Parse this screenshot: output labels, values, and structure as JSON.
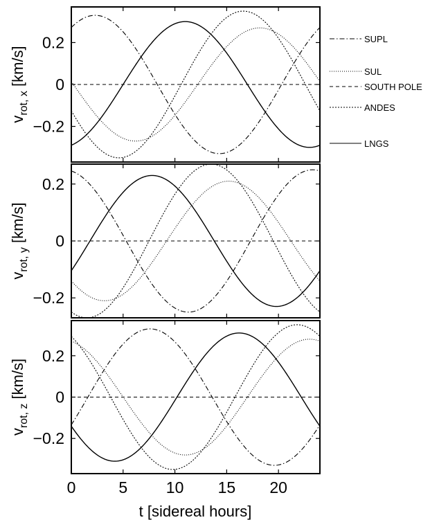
{
  "chart_data": {
    "type": "line",
    "xlabel": "t [sidereal hours]",
    "xlim": [
      0,
      24
    ],
    "xticks": [
      0,
      5,
      10,
      15,
      20
    ],
    "legend_position": "right",
    "grid": false,
    "panels": [
      {
        "ylabel_main": "v",
        "ylabel_sub": "rot, x",
        "ylabel_unit": " [km/s]",
        "ylim": [
          -0.37,
          0.37
        ],
        "yticks": [
          0.2,
          0,
          -0.2
        ],
        "ytick_labels": [
          "0.2",
          "0",
          "−0.2"
        ],
        "series": [
          {
            "name": "SUPL",
            "style": "dashdot",
            "amplitude": 0.33,
            "peak_hour": 2.3
          },
          {
            "name": "SUL",
            "style": "dotted",
            "amplitude": 0.27,
            "peak_hour": 18.2
          },
          {
            "name": "SOUTH POLE",
            "style": "dashed",
            "amplitude": 0.0,
            "peak_hour": 0
          },
          {
            "name": "ANDES",
            "style": "densedot",
            "amplitude": 0.35,
            "peak_hour": 16.6
          },
          {
            "name": "LNGS",
            "style": "solid",
            "amplitude": 0.3,
            "peak_hour": 11.0
          }
        ]
      },
      {
        "ylabel_main": "v",
        "ylabel_sub": "rot, y",
        "ylabel_unit": " [km/s]",
        "ylim": [
          -0.27,
          0.27
        ],
        "yticks": [
          0.2,
          0,
          -0.2
        ],
        "ytick_labels": [
          "0.2",
          "0",
          "−0.2"
        ],
        "series": [
          {
            "name": "SUPL",
            "style": "dashdot",
            "amplitude": 0.25,
            "peak_hour": 23.3
          },
          {
            "name": "SUL",
            "style": "dotted",
            "amplitude": 0.21,
            "peak_hour": 15.2
          },
          {
            "name": "SOUTH POLE",
            "style": "dashed",
            "amplitude": 0.0,
            "peak_hour": 0
          },
          {
            "name": "ANDES",
            "style": "densedot",
            "amplitude": 0.27,
            "peak_hour": 13.5
          },
          {
            "name": "LNGS",
            "style": "solid",
            "amplitude": 0.23,
            "peak_hour": 7.8
          }
        ]
      },
      {
        "ylabel_main": "v",
        "ylabel_sub": "rot, z",
        "ylabel_unit": " [km/s]",
        "ylim": [
          -0.37,
          0.37
        ],
        "yticks": [
          0.2,
          0,
          -0.2
        ],
        "ytick_labels": [
          "0.2",
          "0",
          "−0.2"
        ],
        "series": [
          {
            "name": "SUPL",
            "style": "dashdot",
            "amplitude": 0.33,
            "peak_hour": 7.6
          },
          {
            "name": "SUL",
            "style": "dotted",
            "amplitude": 0.28,
            "peak_hour": 23.0
          },
          {
            "name": "SOUTH POLE",
            "style": "dashed",
            "amplitude": 0.0,
            "peak_hour": 0
          },
          {
            "name": "ANDES",
            "style": "densedot",
            "amplitude": 0.35,
            "peak_hour": 21.8
          },
          {
            "name": "LNGS",
            "style": "solid",
            "amplitude": 0.31,
            "peak_hour": 16.2
          }
        ]
      }
    ],
    "legend": [
      "SUPL",
      "SUL",
      "SOUTH POLE",
      "ANDES",
      "LNGS"
    ]
  }
}
